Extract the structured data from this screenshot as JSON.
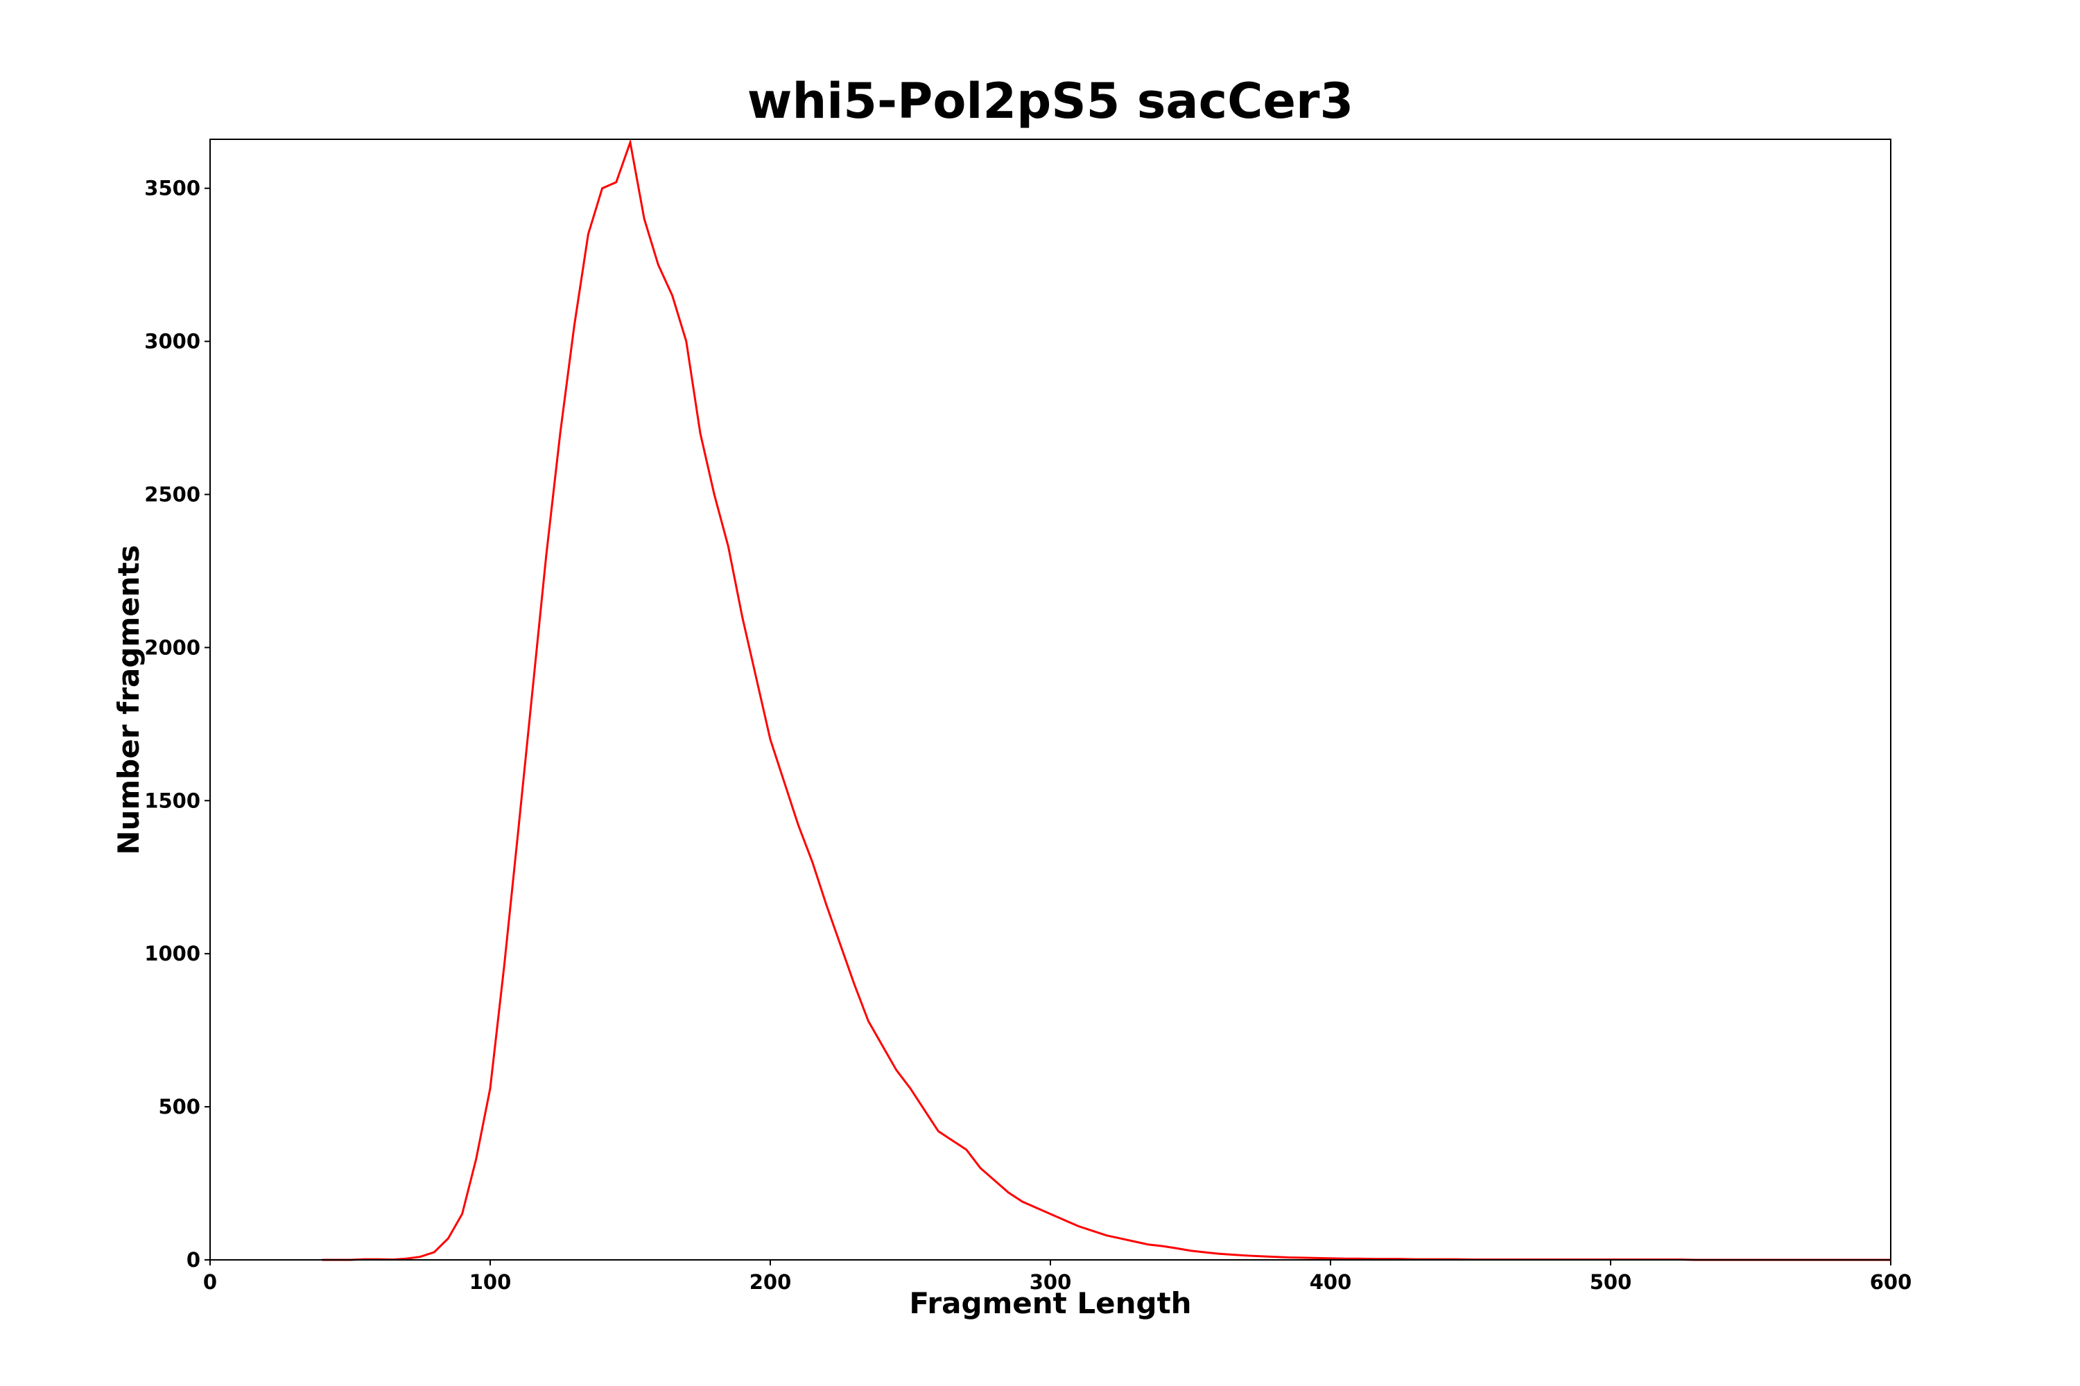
{
  "chart_data": {
    "type": "line",
    "title": "whi5-Pol2pS5 sacCer3",
    "x_label": "Fragment Length",
    "y_label": "Number fragments",
    "x": [
      40,
      45,
      50,
      55,
      60,
      65,
      70,
      75,
      80,
      85,
      90,
      95,
      100,
      105,
      110,
      115,
      120,
      125,
      130,
      135,
      140,
      145,
      150,
      155,
      160,
      165,
      170,
      175,
      180,
      185,
      190,
      195,
      200,
      205,
      210,
      215,
      220,
      225,
      230,
      235,
      240,
      245,
      250,
      255,
      260,
      265,
      270,
      275,
      280,
      285,
      290,
      295,
      300,
      305,
      310,
      315,
      320,
      325,
      330,
      335,
      340,
      345,
      350,
      355,
      360,
      365,
      370,
      375,
      380,
      385,
      390,
      395,
      400,
      405,
      410,
      415,
      420,
      425,
      430,
      435,
      440,
      445,
      450,
      455,
      460,
      465,
      470,
      475,
      480,
      485,
      490,
      495,
      500,
      505,
      510,
      515,
      520,
      525,
      530,
      535,
      540,
      545,
      550,
      555,
      560,
      565,
      570,
      575,
      580,
      585,
      590,
      595,
      600
    ],
    "values": [
      0,
      0,
      0,
      2,
      2,
      1,
      4,
      10,
      25,
      70,
      150,
      330,
      560,
      960,
      1400,
      1850,
      2300,
      2700,
      3050,
      3350,
      3500,
      3520,
      3650,
      3400,
      3250,
      3150,
      3000,
      2700,
      2500,
      2330,
      2100,
      1900,
      1700,
      1560,
      1420,
      1300,
      1160,
      1030,
      900,
      780,
      700,
      620,
      560,
      490,
      420,
      390,
      360,
      300,
      260,
      220,
      190,
      170,
      150,
      130,
      110,
      95,
      80,
      70,
      60,
      50,
      45,
      38,
      30,
      25,
      20,
      17,
      14,
      12,
      10,
      8,
      7,
      6,
      5,
      4,
      4,
      3,
      3,
      3,
      2,
      2,
      2,
      2,
      1,
      1,
      1,
      1,
      1,
      1,
      1,
      1,
      1,
      1,
      1,
      1,
      1,
      1,
      1,
      1,
      0,
      0,
      0,
      0,
      0,
      0,
      0,
      0,
      0,
      0,
      0,
      0,
      0,
      0,
      0
    ],
    "color": "#ff0000",
    "xlim": [
      0,
      600
    ],
    "xticks": [
      0,
      100,
      200,
      300,
      400,
      500,
      600
    ],
    "ylim": [
      0,
      3660
    ],
    "yticks": [
      0,
      500,
      1000,
      1500,
      2000,
      2500,
      3000,
      3500
    ],
    "grid": false
  }
}
